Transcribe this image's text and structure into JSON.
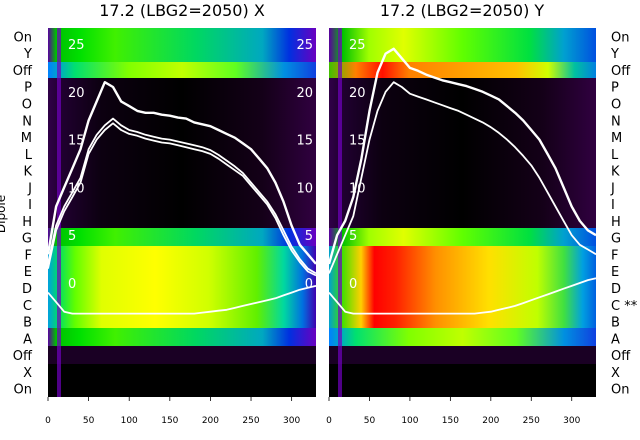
{
  "chart_data": [
    {
      "type": "heatmap",
      "title": "17.2 (LBG2=2050) X",
      "xlabel": "",
      "ylabel": "Dipole",
      "xlim": [
        0,
        330
      ],
      "x_ticks": [
        0,
        50,
        100,
        150,
        200,
        250,
        300
      ],
      "rows_top_to_bottom": [
        "On",
        "Y",
        "Off",
        "P",
        "O",
        "N",
        "M",
        "L",
        "K",
        "J",
        "I",
        "H",
        "G",
        "F",
        "E",
        "D",
        "C",
        "B",
        "A",
        "Off",
        "X",
        "On"
      ],
      "overlay_ticks": [
        "25",
        "20",
        "15",
        "10",
        "5",
        "0"
      ],
      "right_overlay_ticks": [
        "25",
        "20",
        "15",
        "10",
        "5",
        "0"
      ],
      "annotations": [],
      "series": [
        {
          "name": "",
          "x": [
            0,
            10,
            20,
            30,
            40,
            50,
            60,
            70,
            80,
            90,
            100,
            110,
            120,
            130,
            140,
            150,
            160,
            170,
            180,
            190,
            200,
            210,
            220,
            230,
            240,
            250,
            260,
            270,
            280,
            290,
            300,
            310,
            320,
            330
          ],
          "y": [
            3,
            8,
            10,
            12,
            14,
            17,
            19,
            21,
            20.5,
            19,
            18.5,
            18,
            17.8,
            17.8,
            17.6,
            17.5,
            17.3,
            17.2,
            16.8,
            16.6,
            16.4,
            16,
            15.6,
            15.2,
            14.6,
            14,
            13,
            12,
            10.5,
            8.5,
            6,
            4,
            3,
            2
          ]
        },
        {
          "name": "",
          "x": [
            0,
            10,
            20,
            30,
            40,
            50,
            60,
            70,
            80,
            90,
            100,
            110,
            120,
            130,
            140,
            150,
            160,
            170,
            180,
            190,
            200,
            210,
            220,
            230,
            240,
            250,
            260,
            270,
            280,
            290,
            300,
            310,
            320,
            330
          ],
          "y": [
            2,
            6,
            8,
            9.5,
            11,
            14,
            15.5,
            16.5,
            17.2,
            16.5,
            16,
            15.8,
            15.5,
            15.3,
            15.1,
            15,
            14.8,
            14.6,
            14.4,
            14.2,
            13.9,
            13.4,
            12.8,
            12.2,
            11.5,
            10.5,
            9.5,
            8.5,
            7.2,
            5.5,
            3.8,
            2.5,
            1.5,
            1
          ]
        },
        {
          "name": "",
          "x": [
            0,
            10,
            20,
            30,
            40,
            50,
            60,
            70,
            80,
            90,
            100,
            110,
            120,
            130,
            140,
            150,
            160,
            170,
            180,
            190,
            200,
            210,
            220,
            230,
            240,
            250,
            260,
            270,
            280,
            290,
            300,
            310,
            320,
            330
          ],
          "y": [
            1.5,
            5.5,
            7.5,
            9,
            10.5,
            13.5,
            15,
            16,
            16.7,
            16,
            15.6,
            15.4,
            15.1,
            14.9,
            14.7,
            14.6,
            14.4,
            14.2,
            14,
            13.8,
            13.5,
            13,
            12.4,
            11.8,
            11.2,
            10.2,
            9.2,
            8.2,
            6.8,
            5,
            3.4,
            2.2,
            1.2,
            0.8
          ]
        },
        {
          "name": "",
          "x": [
            0,
            10,
            20,
            30,
            40,
            50,
            60,
            70,
            80,
            90,
            100,
            110,
            120,
            130,
            140,
            150,
            160,
            170,
            180,
            190,
            200,
            210,
            220,
            230,
            240,
            250,
            260,
            270,
            280,
            290,
            300,
            310,
            320,
            330
          ],
          "y": [
            -1,
            -2,
            -3,
            -3.2,
            -3.2,
            -3.2,
            -3.2,
            -3.2,
            -3.2,
            -3.2,
            -3.2,
            -3.2,
            -3.2,
            -3.2,
            -3.2,
            -3.2,
            -3.2,
            -3.2,
            -3.2,
            -3.1,
            -3,
            -2.9,
            -2.8,
            -2.6,
            -2.4,
            -2.2,
            -2,
            -1.8,
            -1.6,
            -1.3,
            -1,
            -0.7,
            -0.5,
            -0.3
          ]
        }
      ]
    },
    {
      "type": "heatmap",
      "title": "17.2 (LBG2=2050) Y",
      "xlabel": "",
      "ylabel": "",
      "xlim": [
        0,
        330
      ],
      "x_ticks": [
        0,
        50,
        100,
        150,
        200,
        250,
        300
      ],
      "rows_top_to_bottom": [
        "On",
        "Y",
        "Off",
        "P",
        "O",
        "N",
        "M",
        "L",
        "K",
        "J",
        "I",
        "H",
        "G",
        "F",
        "E",
        "D",
        "C **",
        "B",
        "A",
        "Off",
        "X",
        "On"
      ],
      "overlay_ticks": [
        "25",
        "20",
        "15",
        "10",
        "5",
        "0"
      ],
      "right_overlay_ticks": [],
      "annotations": [
        "**"
      ],
      "series": [
        {
          "name": "",
          "x": [
            0,
            10,
            20,
            30,
            40,
            50,
            60,
            70,
            80,
            90,
            100,
            110,
            120,
            130,
            140,
            150,
            160,
            170,
            180,
            190,
            200,
            210,
            220,
            230,
            240,
            250,
            260,
            270,
            280,
            290,
            300,
            310,
            320,
            330
          ],
          "y": [
            2,
            5,
            6.5,
            9,
            13,
            18,
            22,
            24,
            24.5,
            23.5,
            22.5,
            22.2,
            21.8,
            21.5,
            21.2,
            21,
            20.8,
            20.6,
            20.3,
            20,
            19.6,
            19.2,
            18.5,
            17.8,
            17,
            16,
            15,
            13.5,
            12,
            10,
            8,
            6.5,
            5.5,
            5
          ]
        },
        {
          "name": "",
          "x": [
            0,
            10,
            20,
            30,
            40,
            50,
            60,
            70,
            80,
            90,
            100,
            110,
            120,
            130,
            140,
            150,
            160,
            170,
            180,
            190,
            200,
            210,
            220,
            230,
            240,
            250,
            260,
            270,
            280,
            290,
            300,
            310,
            320,
            330
          ],
          "y": [
            1,
            3,
            5,
            7,
            11,
            15,
            18,
            20,
            21,
            20.5,
            19.8,
            19.5,
            19.2,
            18.9,
            18.6,
            18.3,
            18,
            17.6,
            17.2,
            16.8,
            16.3,
            15.7,
            15,
            14.2,
            13.3,
            12.3,
            11,
            9.5,
            8,
            6.5,
            5,
            4,
            3.5,
            3
          ]
        },
        {
          "name": "",
          "x": [
            0,
            10,
            20,
            30,
            40,
            50,
            60,
            70,
            80,
            90,
            100,
            110,
            120,
            130,
            140,
            150,
            160,
            170,
            180,
            190,
            200,
            210,
            220,
            230,
            240,
            250,
            260,
            270,
            280,
            290,
            300,
            310,
            320,
            330
          ],
          "y": [
            -1,
            -2,
            -3,
            -3.2,
            -3.2,
            -3.2,
            -3.2,
            -3.2,
            -3.2,
            -3.2,
            -3.2,
            -3.2,
            -3.2,
            -3.2,
            -3.2,
            -3.2,
            -3.2,
            -3.2,
            -3.2,
            -3.1,
            -3,
            -2.8,
            -2.6,
            -2.4,
            -2.1,
            -1.8,
            -1.5,
            -1.2,
            -0.9,
            -0.6,
            -0.3,
            0,
            0.3,
            0.5
          ]
        }
      ]
    }
  ]
}
